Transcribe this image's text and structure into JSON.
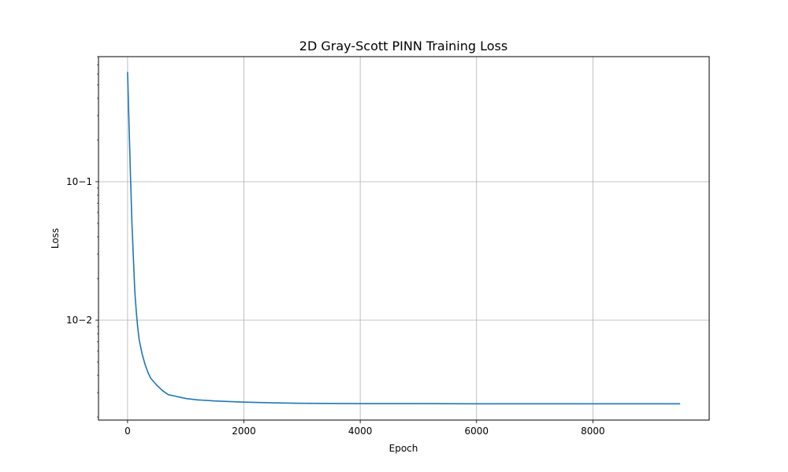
{
  "chart_data": {
    "type": "line",
    "title": "2D Gray-Scott PINN Training Loss",
    "xlabel": "Epoch",
    "ylabel": "Loss",
    "xscale": "linear",
    "yscale": "log",
    "xlim": [
      -500,
      10000
    ],
    "ylim": [
      0.0019,
      0.8
    ],
    "grid": true,
    "legend": "none",
    "x_ticks": [
      0,
      2000,
      4000,
      6000,
      8000
    ],
    "x_tick_labels": [
      "0",
      "2000",
      "4000",
      "6000",
      "8000"
    ],
    "y_ticks": [
      0.01,
      0.1
    ],
    "y_tick_labels": [
      "10−2",
      "10−1"
    ],
    "series": [
      {
        "color": "#1f77b4",
        "x": [
          0,
          25,
          50,
          75,
          100,
          125,
          150,
          175,
          200,
          250,
          300,
          350,
          400,
          500,
          600,
          700,
          800,
          1000,
          1200,
          1500,
          2000,
          2500,
          3000,
          4000,
          5000,
          6000,
          7000,
          8000,
          9500
        ],
        "y": [
          0.62,
          0.26,
          0.11,
          0.05,
          0.028,
          0.016,
          0.0115,
          0.0088,
          0.0072,
          0.0057,
          0.0048,
          0.0042,
          0.0038,
          0.0034,
          0.0031,
          0.0029,
          0.00284,
          0.00272,
          0.00266,
          0.00261,
          0.00256,
          0.00253,
          0.00251,
          0.0025,
          0.0025,
          0.00249,
          0.00249,
          0.00249,
          0.00249
        ]
      }
    ]
  }
}
